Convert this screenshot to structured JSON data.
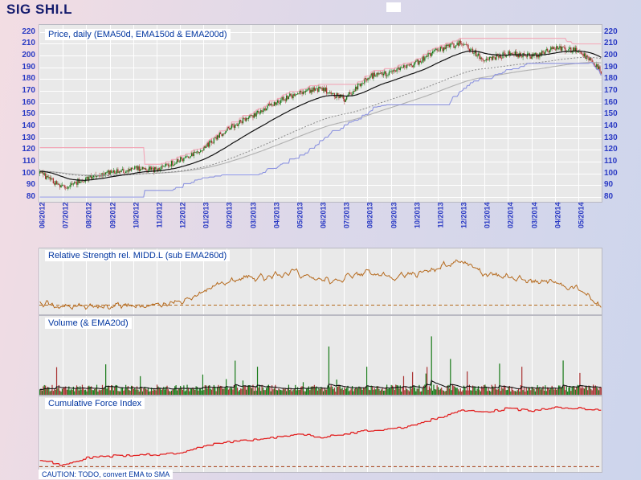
{
  "header": {
    "title": "SIG SHI.L"
  },
  "panels": {
    "price": {
      "label": "Price, daily (EMA50d, EMA150d & EMA200d)"
    },
    "rs": {
      "label": "Relative Strength rel. MIDD.L (sub EMA260d)"
    },
    "volume": {
      "label": "Volume (& EMA20d)"
    },
    "cfi": {
      "label": "Cumulative Force Index"
    }
  },
  "footer": {
    "caution": "CAUTION: TODO, convert EMA to SMA"
  },
  "colors": {
    "panel_bg": "#e9e9e9",
    "grid": "#ffffff",
    "axis_text": "#2b3bc4",
    "title_text": "#151c6e",
    "label_text": "#0035a0",
    "page_gradient": [
      "#f3dde3",
      "#cdd5ec"
    ]
  },
  "chart_data": [
    {
      "type": "candlestick",
      "title": "Price, daily (EMA50d, EMA150d & EMA200d)",
      "x_labels": [
        "06/2012",
        "07/2012",
        "08/2012",
        "09/2012",
        "10/2012",
        "11/2012",
        "12/2012",
        "01/2013",
        "02/2013",
        "03/2013",
        "04/2013",
        "05/2013",
        "06/2013",
        "07/2013",
        "08/2013",
        "09/2013",
        "10/2013",
        "11/2013",
        "12/2013",
        "01/2014",
        "02/2014",
        "03/2014",
        "04/2014",
        "05/2014"
      ],
      "ylim": [
        80,
        220
      ],
      "y_ticks": [
        80,
        90,
        100,
        110,
        120,
        130,
        140,
        150,
        160,
        170,
        180,
        190,
        200,
        210,
        220
      ],
      "monthly_close": [
        100,
        88,
        96,
        101,
        104,
        103,
        112,
        122,
        138,
        148,
        160,
        168,
        172,
        163,
        182,
        186,
        193,
        205,
        211,
        196,
        202,
        199,
        206,
        204,
        186
      ],
      "candle_up_color": "#177a17",
      "candle_down_color": "#aa3333",
      "overlays": [
        {
          "name": "EMA50d",
          "color": "#111111",
          "style": "solid"
        },
        {
          "name": "EMA150d",
          "color": "#888888",
          "style": "dashed"
        },
        {
          "name": "EMA200d",
          "color": "#b0b0b0",
          "style": "solid"
        },
        {
          "name": "trailing-high-line",
          "color": "#f2a7b8",
          "style": "solid"
        },
        {
          "name": "trailing-low-line",
          "color": "#8d94e0",
          "style": "solid"
        }
      ]
    },
    {
      "type": "line",
      "title": "Relative Strength rel. MIDD.L (sub EMA260d)",
      "color": "#b5691c",
      "baseline": {
        "style": "dashed",
        "color": "#b5691c",
        "level": 0.14
      },
      "monthly_level": [
        0.18,
        0.09,
        0.15,
        0.13,
        0.16,
        0.15,
        0.2,
        0.33,
        0.5,
        0.56,
        0.6,
        0.63,
        0.52,
        0.57,
        0.63,
        0.55,
        0.6,
        0.7,
        0.83,
        0.63,
        0.56,
        0.52,
        0.48,
        0.38,
        0.1
      ]
    },
    {
      "type": "bar",
      "title": "Volume (& EMA20d)",
      "bar_up_color": "#177a17",
      "bar_down_color": "#aa3333",
      "ema_color": "#111111",
      "notable_spikes": [
        {
          "f": 0.289,
          "v": 26,
          "c": "up"
        },
        {
          "f": 0.386,
          "v": 36,
          "c": "up"
        },
        {
          "f": 0.514,
          "v": 62,
          "c": "up"
        },
        {
          "f": 0.581,
          "v": 36,
          "c": "up"
        },
        {
          "f": 0.646,
          "v": 24,
          "c": "down"
        },
        {
          "f": 0.696,
          "v": 75,
          "c": "up"
        },
        {
          "f": 0.731,
          "v": 46,
          "c": "up"
        },
        {
          "f": 0.76,
          "v": 30,
          "c": "down"
        },
        {
          "f": 0.817,
          "v": 40,
          "c": "up"
        },
        {
          "f": 0.857,
          "v": 36,
          "c": "down"
        },
        {
          "f": 0.931,
          "v": 44,
          "c": "up"
        },
        {
          "f": 0.96,
          "v": 28,
          "c": "down"
        }
      ]
    },
    {
      "type": "line",
      "title": "Cumulative Force Index",
      "color": "#e22222",
      "baseline": {
        "style": "dashed",
        "color": "#a33a10",
        "level": 0.07
      },
      "monthly_level": [
        0.16,
        0.09,
        0.19,
        0.21,
        0.22,
        0.23,
        0.26,
        0.35,
        0.39,
        0.42,
        0.45,
        0.5,
        0.46,
        0.5,
        0.55,
        0.57,
        0.62,
        0.72,
        0.82,
        0.79,
        0.84,
        0.81,
        0.86,
        0.84,
        0.81
      ]
    }
  ]
}
